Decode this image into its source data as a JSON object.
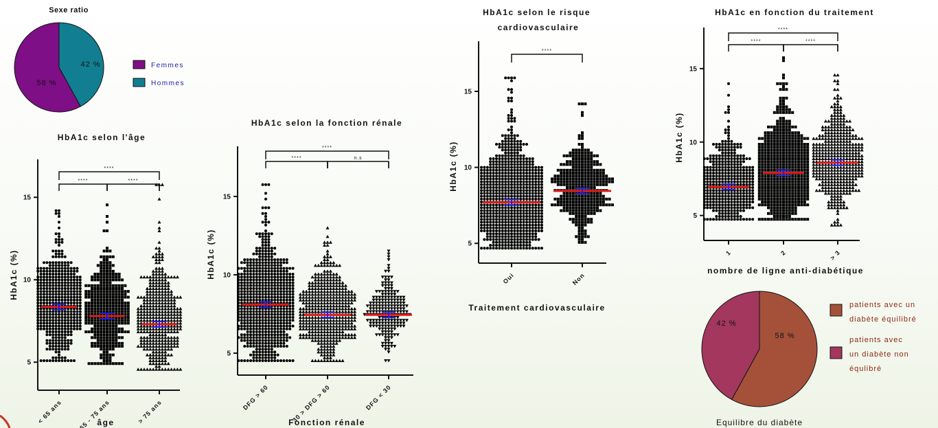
{
  "colors": {
    "pie1_a": "#7e0f86",
    "pie1_b": "#117f91",
    "pie2_a": "#a5513a",
    "pie2_b": "#a3375e",
    "mean": "#e11b1b",
    "ci": "#2222dd",
    "dots": "#000000",
    "leg_text1": "#1a1a9e",
    "leg_text2": "#8a2a12"
  },
  "chart_data": [
    {
      "id": "sexe",
      "type": "pie",
      "title": "Sexe ratio",
      "slices": [
        {
          "label": "Femmes",
          "value": 58,
          "text": "58 %"
        },
        {
          "label": "Hommes",
          "value": 42,
          "text": "42 %"
        }
      ]
    },
    {
      "id": "age",
      "type": "scatter",
      "title": "HbA1c selon l'âge",
      "ylabel": "HbA1c (%)",
      "xlabel": "âge",
      "ylim": [
        3.3,
        17.3
      ],
      "yticks": [
        5,
        10,
        15
      ],
      "categories": [
        "< 65 ans",
        "65 - 75 ans",
        "> 75 ans"
      ],
      "markers": [
        "circle",
        "square",
        "triangle"
      ],
      "means": [
        8.35,
        7.8,
        7.3
      ],
      "ranges": [
        [
          5.1,
          14.2
        ],
        [
          4.9,
          14.5
        ],
        [
          4.6,
          15.8
        ]
      ],
      "comparisons": [
        {
          "from": 0,
          "to": 1,
          "label": "****"
        },
        {
          "from": 1,
          "to": 2,
          "label": "****"
        },
        {
          "from": 0,
          "to": 2,
          "label": "****"
        }
      ]
    },
    {
      "id": "renal",
      "type": "scatter",
      "title": "HbA1c selon la fonction rénale",
      "ylabel": "HbA1c (%)",
      "xlabel": "Fonction rénale",
      "ylim": [
        3.6,
        18.2
      ],
      "yticks": [
        5,
        10,
        15
      ],
      "categories": [
        "DFG > 60",
        "30 > DFG > 60",
        "DFG < 30"
      ],
      "markers": [
        "circle",
        "triangle",
        "invtriangle"
      ],
      "means": [
        8.1,
        7.45,
        7.45
      ],
      "ranges": [
        [
          4.6,
          15.8
        ],
        [
          4.6,
          13.0
        ],
        [
          4.5,
          11.5
        ]
      ],
      "comparisons": [
        {
          "from": 0,
          "to": 1,
          "label": "****"
        },
        {
          "from": 1,
          "to": 2,
          "label": "n.s"
        },
        {
          "from": 0,
          "to": 2,
          "label": "****"
        }
      ]
    },
    {
      "id": "cardio",
      "type": "scatter",
      "title": "HbA1c selon le risque cardiovasculaire",
      "ylabel": "HbA1c (%)",
      "xlabel": "Traitement cardiovasculaire",
      "ylim": [
        3.7,
        18.3
      ],
      "yticks": [
        5,
        10,
        15
      ],
      "categories": [
        "Oui",
        "Non"
      ],
      "markers": [
        "circle",
        "square"
      ],
      "means": [
        7.7,
        8.45
      ],
      "ranges": [
        [
          4.6,
          15.8
        ],
        [
          5.1,
          14.2
        ]
      ],
      "comparisons": [
        {
          "from": 0,
          "to": 1,
          "label": "****"
        }
      ]
    },
    {
      "id": "trait",
      "type": "scatter",
      "title": "HbA1c en fonction du traitement",
      "ylabel": "HbA1c (%)",
      "xlabel": "nombre de ligne anti-diabétique",
      "ylim": [
        3.3,
        17.8
      ],
      "yticks": [
        5,
        10,
        15
      ],
      "categories": [
        "1",
        "2",
        "> 3"
      ],
      "markers": [
        "circle",
        "square",
        "triangle"
      ],
      "means": [
        6.95,
        7.9,
        8.6
      ],
      "ranges": [
        [
          4.8,
          13.9
        ],
        [
          4.8,
          15.8
        ],
        [
          4.4,
          14.5
        ]
      ],
      "comparisons": [
        {
          "from": 0,
          "to": 1,
          "label": "****"
        },
        {
          "from": 1,
          "to": 2,
          "label": "****"
        },
        {
          "from": 0,
          "to": 2,
          "label": "****"
        }
      ]
    },
    {
      "id": "equilibre",
      "type": "pie",
      "title": "Equilibre du diabète",
      "slices": [
        {
          "label": "patients avec un diabète équilibré",
          "value": 58,
          "text": "58 %"
        },
        {
          "label": "patients avec un diabète non équlibré",
          "value": 42,
          "text": "42 %"
        }
      ]
    }
  ]
}
